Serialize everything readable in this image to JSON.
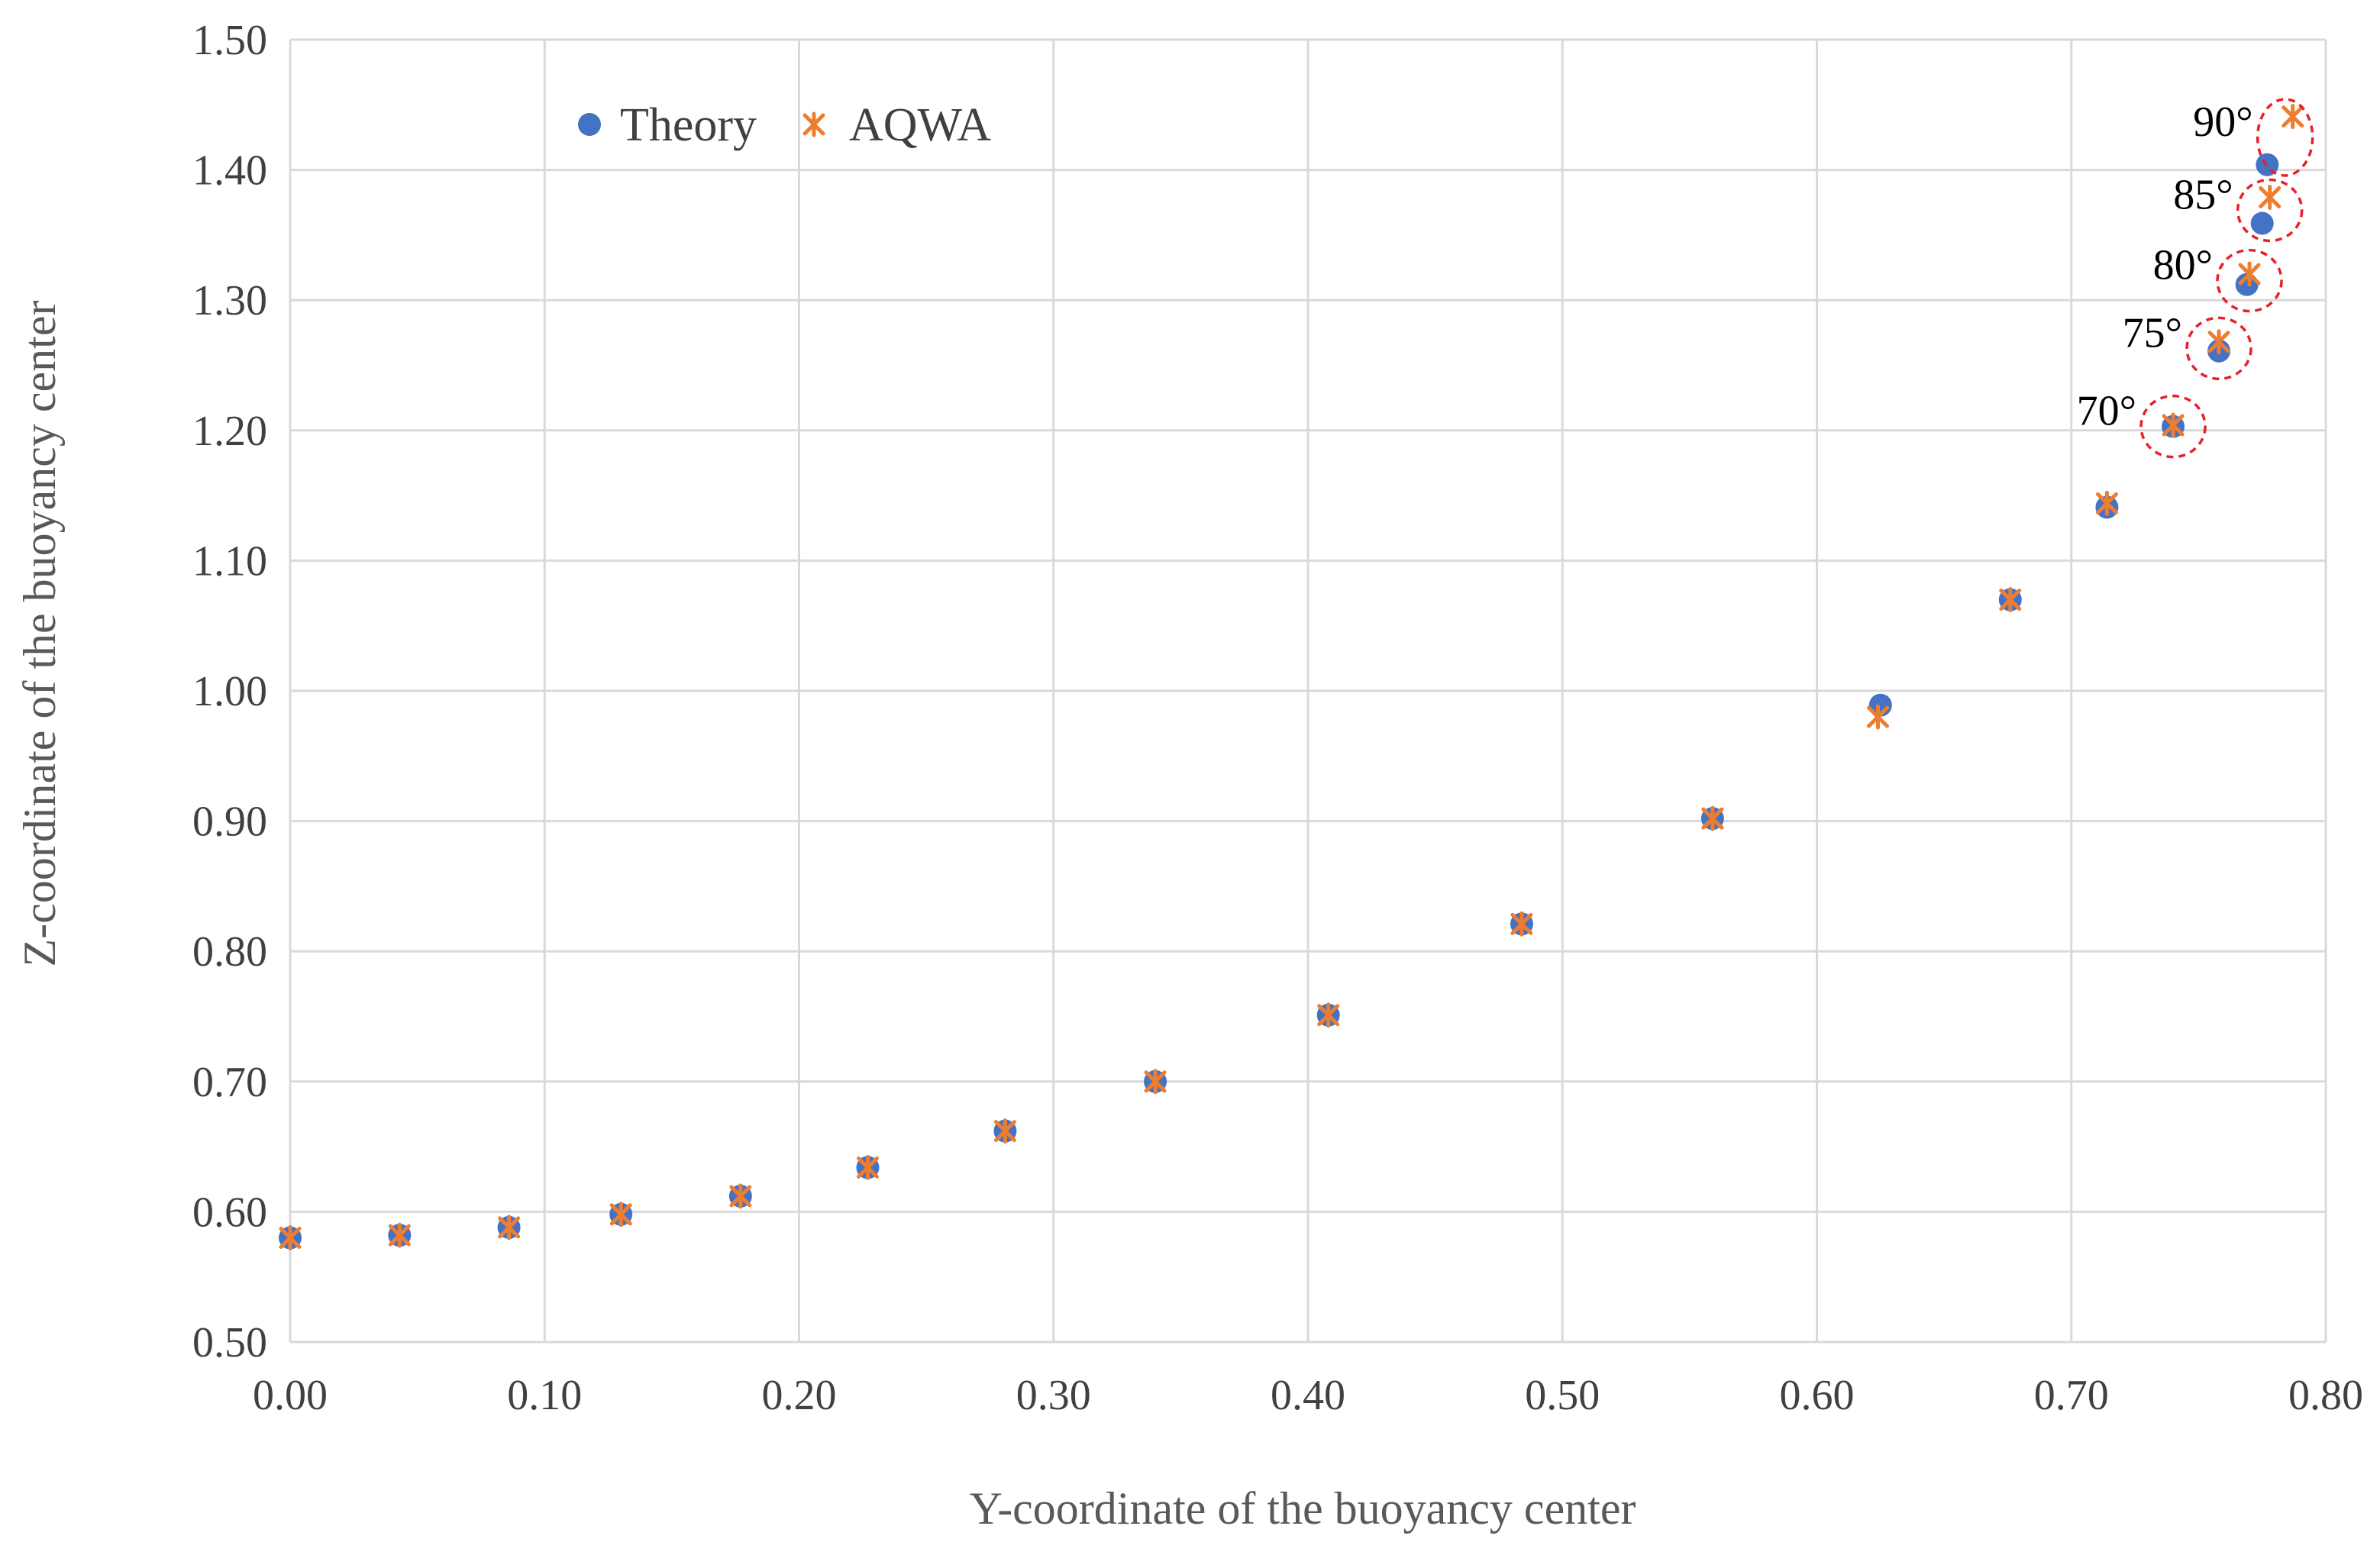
{
  "chart_data": {
    "type": "scatter",
    "title": "",
    "xlabel": "Y-coordinate of the buoyancy center",
    "ylabel": "Z-coordinate of the buoyancy center",
    "xlim": [
      0.0,
      0.8
    ],
    "ylim": [
      0.5,
      1.5
    ],
    "x_ticks": [
      "0.00",
      "0.10",
      "0.20",
      "0.30",
      "0.40",
      "0.50",
      "0.60",
      "0.70",
      "0.80"
    ],
    "y_ticks": [
      "0.50",
      "0.60",
      "0.70",
      "0.80",
      "0.90",
      "1.00",
      "1.10",
      "1.20",
      "1.30",
      "1.40",
      "1.50"
    ],
    "grid": true,
    "legend_position": "top-left",
    "series": [
      {
        "name": "Theory",
        "marker": "circle",
        "color": "#4472C4",
        "points": [
          [
            0.0,
            0.58
          ],
          [
            0.043,
            0.582
          ],
          [
            0.086,
            0.588
          ],
          [
            0.13,
            0.598
          ],
          [
            0.177,
            0.612
          ],
          [
            0.227,
            0.634
          ],
          [
            0.281,
            0.662
          ],
          [
            0.34,
            0.7
          ],
          [
            0.408,
            0.751
          ],
          [
            0.484,
            0.821
          ],
          [
            0.559,
            0.902
          ],
          [
            0.625,
            0.989
          ],
          [
            0.676,
            1.07
          ],
          [
            0.714,
            1.141
          ],
          [
            0.74,
            1.203
          ],
          [
            0.758,
            1.261
          ],
          [
            0.769,
            1.312
          ],
          [
            0.775,
            1.359
          ],
          [
            0.777,
            1.404
          ]
        ]
      },
      {
        "name": "AQWA",
        "marker": "asterisk",
        "color": "#ED7D31",
        "points": [
          [
            0.0,
            0.58
          ],
          [
            0.043,
            0.582
          ],
          [
            0.086,
            0.588
          ],
          [
            0.13,
            0.598
          ],
          [
            0.177,
            0.612
          ],
          [
            0.227,
            0.634
          ],
          [
            0.281,
            0.662
          ],
          [
            0.34,
            0.7
          ],
          [
            0.408,
            0.751
          ],
          [
            0.484,
            0.821
          ],
          [
            0.559,
            0.902
          ],
          [
            0.624,
            0.98
          ],
          [
            0.676,
            1.07
          ],
          [
            0.714,
            1.144
          ],
          [
            0.74,
            1.204
          ],
          [
            0.758,
            1.268
          ],
          [
            0.77,
            1.32
          ],
          [
            0.778,
            1.379
          ],
          [
            0.787,
            1.441
          ]
        ]
      }
    ],
    "annotations": [
      {
        "text": "70°",
        "x": 0.74,
        "y": 1.203
      },
      {
        "text": "75°",
        "x": 0.758,
        "y": 1.263
      },
      {
        "text": "80°",
        "x": 0.77,
        "y": 1.315
      },
      {
        "text": "85°",
        "x": 0.778,
        "y": 1.369
      },
      {
        "text": "90°",
        "x": 0.784,
        "y": 1.425
      }
    ]
  }
}
